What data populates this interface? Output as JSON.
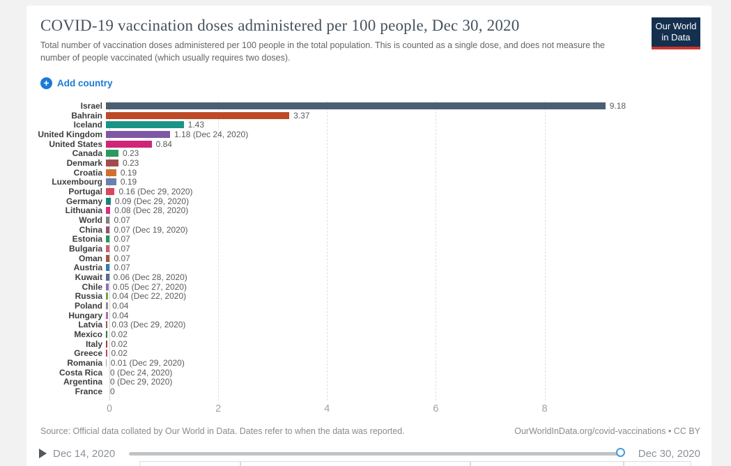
{
  "header": {
    "title": "COVID-19 vaccination doses administered per 100 people, Dec 30, 2020",
    "subtitle": "Total number of vaccination doses administered per 100 people in the total population. This is counted as a single dose, and does not measure the number of people vaccinated (which usually requires two doses).",
    "logo_line1": "Our World",
    "logo_line2": "in Data",
    "logo_colors": {
      "background": "#15304F",
      "stripe": "#D0342C"
    }
  },
  "controls": {
    "add_country_label": "Add country",
    "accent_color": "#1a7ad6"
  },
  "chart_data": {
    "type": "bar",
    "orientation": "horizontal",
    "title": "COVID-19 vaccination doses administered per 100 people, Dec 30, 2020",
    "xlabel": "",
    "ylabel": "",
    "xlim": [
      0,
      10.9
    ],
    "ticks": [
      0,
      2,
      4,
      6,
      8
    ],
    "grid": "dashed-vertical",
    "bars": [
      {
        "label": "Israel",
        "value": 9.18,
        "display": "9.18",
        "color": "#4C5F72"
      },
      {
        "label": "Bahrain",
        "value": 3.37,
        "display": "3.37",
        "color": "#BC4A26"
      },
      {
        "label": "Iceland",
        "value": 1.43,
        "display": "1.43",
        "color": "#1A9487"
      },
      {
        "label": "United Kingdom",
        "value": 1.18,
        "display": "1.18 (Dec 24, 2020)",
        "color": "#7E57A5"
      },
      {
        "label": "United States",
        "value": 0.84,
        "display": "0.84",
        "color": "#CF2478"
      },
      {
        "label": "Canada",
        "value": 0.23,
        "display": "0.23",
        "color": "#2C9A5E"
      },
      {
        "label": "Denmark",
        "value": 0.23,
        "display": "0.23",
        "color": "#A04D4F"
      },
      {
        "label": "Croatia",
        "value": 0.19,
        "display": "0.19",
        "color": "#D07030"
      },
      {
        "label": "Luxembourg",
        "value": 0.19,
        "display": "0.19",
        "color": "#6C80AC"
      },
      {
        "label": "Portugal",
        "value": 0.16,
        "display": "0.16 (Dec 29, 2020)",
        "color": "#D8475C"
      },
      {
        "label": "Germany",
        "value": 0.09,
        "display": "0.09 (Dec 29, 2020)",
        "color": "#17837A"
      },
      {
        "label": "Lithuania",
        "value": 0.08,
        "display": "0.08 (Dec 28, 2020)",
        "color": "#DE2A82"
      },
      {
        "label": "World",
        "value": 0.07,
        "display": "0.07",
        "color": "#828282"
      },
      {
        "label": "China",
        "value": 0.07,
        "display": "0.07 (Dec 19, 2020)",
        "color": "#915473"
      },
      {
        "label": "Estonia",
        "value": 0.07,
        "display": "0.07",
        "color": "#1E9A62"
      },
      {
        "label": "Bulgaria",
        "value": 0.07,
        "display": "0.07",
        "color": "#CC5F74"
      },
      {
        "label": "Oman",
        "value": 0.07,
        "display": "0.07",
        "color": "#A0593C"
      },
      {
        "label": "Austria",
        "value": 0.07,
        "display": "0.07",
        "color": "#2E7EB4"
      },
      {
        "label": "Kuwait",
        "value": 0.06,
        "display": "0.06 (Dec 28, 2020)",
        "color": "#566D92"
      },
      {
        "label": "Chile",
        "value": 0.05,
        "display": "0.05 (Dec 27, 2020)",
        "color": "#8E70BC"
      },
      {
        "label": "Russia",
        "value": 0.04,
        "display": "0.04 (Dec 22, 2020)",
        "color": "#75A148"
      },
      {
        "label": "Poland",
        "value": 0.04,
        "display": "0.04",
        "color": "#8F8F8F"
      },
      {
        "label": "Hungary",
        "value": 0.04,
        "display": "0.04",
        "color": "#AE6CAE"
      },
      {
        "label": "Latvia",
        "value": 0.03,
        "display": "0.03 (Dec 29, 2020)",
        "color": "#99584A"
      },
      {
        "label": "Mexico",
        "value": 0.02,
        "display": "0.02",
        "color": "#2F7A45"
      },
      {
        "label": "Italy",
        "value": 0.02,
        "display": "0.02",
        "color": "#A63C3C"
      },
      {
        "label": "Greece",
        "value": 0.02,
        "display": "0.02",
        "color": "#C7405E"
      },
      {
        "label": "Romania",
        "value": 0.01,
        "display": "0.01 (Dec 29, 2020)",
        "color": "#A2A893"
      },
      {
        "label": "Costa Rica",
        "value": 0,
        "display": "0 (Dec 24, 2020)",
        "color": "#9A5B4C"
      },
      {
        "label": "Argentina",
        "value": 0,
        "display": "0 (Dec 29, 2020)",
        "color": "#6C80AC"
      },
      {
        "label": "France",
        "value": 0,
        "display": "0",
        "color": "#2E7EB4"
      }
    ]
  },
  "footer": {
    "source": "Source: Official data collated by Our World in Data. Dates refer to when the data was reported.",
    "link": "OurWorldInData.org/covid-vaccinations • CC BY"
  },
  "timeline": {
    "start_date": "Dec 14, 2020",
    "end_date": "Dec 30, 2020",
    "handle_color": "#3F9EDA"
  }
}
